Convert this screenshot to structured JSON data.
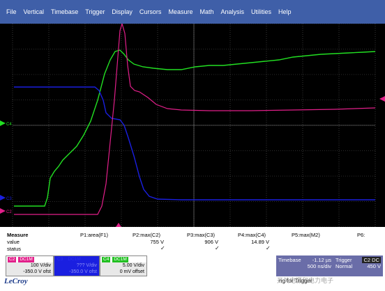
{
  "menu": [
    "File",
    "Vertical",
    "Timebase",
    "Trigger",
    "Display",
    "Cursors",
    "Measure",
    "Math",
    "Analysis",
    "Utilities",
    "Help"
  ],
  "colors": {
    "c2": "#e21f8a",
    "c3": "#1a1fe0",
    "c4": "#22e022",
    "grid": "#5a5a5a",
    "menubar": "#3f5fa8"
  },
  "screen": {
    "ch_labels": {
      "c4": "C4",
      "c2": "C2",
      "c3": "C3"
    }
  },
  "measure": {
    "row_labels": [
      "Measure",
      "value",
      "status"
    ],
    "columns": [
      {
        "param": "P1:area(F1)",
        "value": "",
        "status": ""
      },
      {
        "param": "P2:max(C2)",
        "value": "755 V",
        "status": "✓"
      },
      {
        "param": "P3:max(C3)",
        "value": "906 V",
        "status": "✓"
      },
      {
        "param": "P4:max(C4)",
        "value": "14.89 V",
        "status": "✓"
      },
      {
        "param": "P5:max(M2)",
        "value": "",
        "status": ""
      },
      {
        "param": "P6:",
        "value": "",
        "status": ""
      }
    ]
  },
  "channels": [
    {
      "tag": "C2",
      "coupling": "DC1M",
      "vdiv": "100 V/div",
      "offset": "-350.0 V ofst"
    },
    {
      "tag": "C3",
      "coupling": "DC1M",
      "vdiv": "??? V/div",
      "offset": "-350.0 V ofst"
    },
    {
      "tag": "C4",
      "coupling": "DC1M",
      "vdiv": "5.00 V/div",
      "offset": "0 mV offset"
    }
  ],
  "timebase": {
    "label": "Timebase",
    "delay": "-1.12 µs",
    "tdiv": "500 ns/div",
    "srate": ""
  },
  "trigger": {
    "label": "Trigger",
    "tag": "C2 DC",
    "mode": "Normal",
    "level": "450 V",
    "slope": ""
  },
  "footer": {
    "logo": "LeCroy",
    "text": "ng for Trigger",
    "watermark": "开关电源和电力电子"
  }
}
